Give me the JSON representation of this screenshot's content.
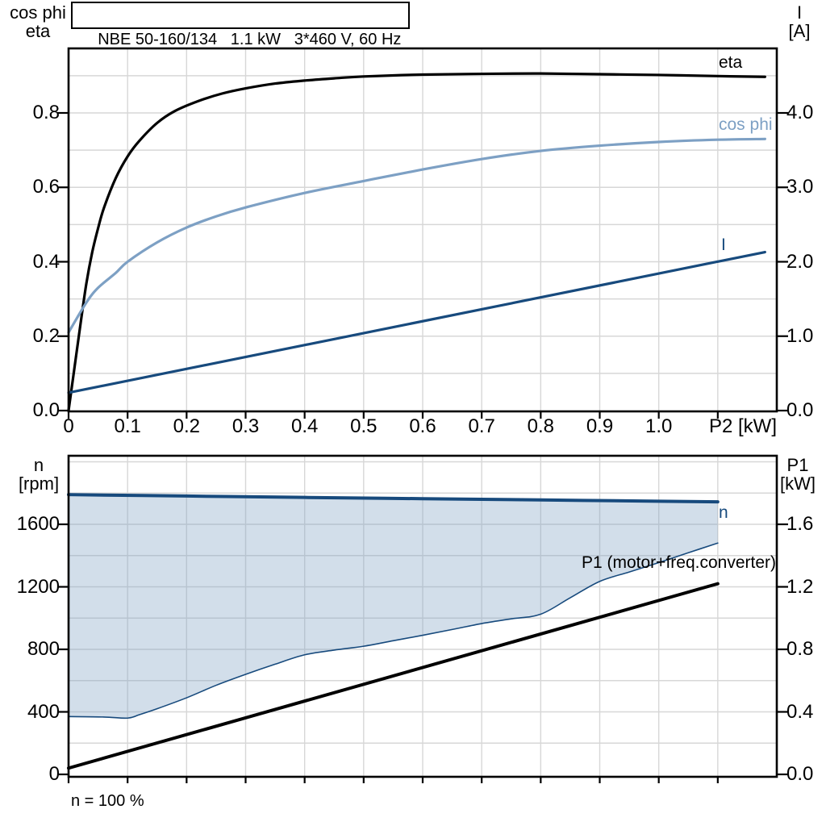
{
  "title_box": {
    "text": "NBE 50-160/134   1.1 kW   3*460 V, 60 Hz"
  },
  "caption": "n = 100 %",
  "colors": {
    "black": "#000000",
    "dark_blue": "#174a7d",
    "light_blue": "#7da0c4",
    "area_fill": "rgba(125,160,196,0.35)",
    "grid": "#d7d7d7",
    "frame": "#000000",
    "background": "#ffffff"
  },
  "chart_data": [
    {
      "id": "top",
      "type": "line",
      "x_axis": {
        "label": "P2 [kW]",
        "min": 0,
        "max": 1.2,
        "grid_step": 0.1,
        "tick_values": [
          0,
          0.1,
          0.2,
          0.3,
          0.4,
          0.5,
          0.6,
          0.7,
          0.8,
          0.9,
          1.0
        ],
        "tick_labels": [
          "0",
          "0.1",
          "0.2",
          "0.3",
          "0.4",
          "0.5",
          "0.6",
          "0.7",
          "0.8",
          "0.9",
          "1.0"
        ]
      },
      "y_left": {
        "header": [
          "cos phi",
          "eta"
        ],
        "min": 0,
        "max": 0.974,
        "grid_step": 0.1,
        "tick_values": [
          0,
          0.2,
          0.4,
          0.6,
          0.8
        ],
        "tick_labels": [
          "0.0",
          "0.2",
          "0.4",
          "0.6",
          "0.8"
        ]
      },
      "y_right": {
        "header": [
          "I",
          "[A]"
        ],
        "min": 0,
        "max": 4.87,
        "tick_values": [
          0,
          1,
          2,
          3,
          4
        ],
        "tick_labels": [
          "0.0",
          "1.0",
          "2.0",
          "3.0",
          "4.0"
        ]
      },
      "legend_position": "curve-end-labels",
      "grid": true,
      "series": [
        {
          "label": "eta",
          "axis": "left",
          "color": "#000000",
          "width": 3.2,
          "points": [
            [
              0,
              0
            ],
            [
              0.01,
              0.115
            ],
            [
              0.02,
              0.23
            ],
            [
              0.03,
              0.34
            ],
            [
              0.04,
              0.425
            ],
            [
              0.05,
              0.49
            ],
            [
              0.06,
              0.545
            ],
            [
              0.08,
              0.625
            ],
            [
              0.1,
              0.683
            ],
            [
              0.12,
              0.725
            ],
            [
              0.15,
              0.773
            ],
            [
              0.18,
              0.805
            ],
            [
              0.22,
              0.832
            ],
            [
              0.26,
              0.852
            ],
            [
              0.3,
              0.866
            ],
            [
              0.35,
              0.879
            ],
            [
              0.4,
              0.887
            ],
            [
              0.45,
              0.893
            ],
            [
              0.5,
              0.898
            ],
            [
              0.6,
              0.903
            ],
            [
              0.7,
              0.905
            ],
            [
              0.8,
              0.906
            ],
            [
              0.9,
              0.904
            ],
            [
              1.0,
              0.902
            ],
            [
              1.1,
              0.899
            ],
            [
              1.18,
              0.897
            ]
          ]
        },
        {
          "label": "cos phi",
          "axis": "left",
          "color": "#7da0c4",
          "width": 3.2,
          "points": [
            [
              0,
              0.21
            ],
            [
              0.03,
              0.29
            ],
            [
              0.05,
              0.33
            ],
            [
              0.08,
              0.37
            ],
            [
              0.1,
              0.4
            ],
            [
              0.15,
              0.452
            ],
            [
              0.2,
              0.492
            ],
            [
              0.25,
              0.522
            ],
            [
              0.3,
              0.546
            ],
            [
              0.4,
              0.585
            ],
            [
              0.5,
              0.617
            ],
            [
              0.6,
              0.648
            ],
            [
              0.7,
              0.676
            ],
            [
              0.8,
              0.698
            ],
            [
              0.9,
              0.712
            ],
            [
              1.0,
              0.722
            ],
            [
              1.1,
              0.728
            ],
            [
              1.18,
              0.73
            ]
          ]
        },
        {
          "label": "I",
          "axis": "right",
          "color": "#174a7d",
          "width": 3.2,
          "points": [
            [
              0,
              0.24
            ],
            [
              1.18,
              2.13
            ]
          ]
        }
      ]
    },
    {
      "id": "bottom",
      "type": "line",
      "x_axis": {
        "label": "",
        "min": 0,
        "max": 1.2,
        "grid_step": 0.1
      },
      "y_left": {
        "header": [
          "n",
          "[rpm]"
        ],
        "min": 0,
        "max": 2050,
        "grid_step": 200,
        "tick_values": [
          0,
          400,
          800,
          1200,
          1600
        ],
        "tick_labels": [
          "0",
          "400",
          "800",
          "1200",
          "1600"
        ]
      },
      "y_right": {
        "header": [
          "P1",
          "[kW]"
        ],
        "min": 0,
        "max": 2.05,
        "tick_values": [
          0,
          0.4,
          0.8,
          1.2,
          1.6
        ],
        "tick_labels": [
          "0.0",
          "0.4",
          "0.8",
          "1.2",
          "1.6"
        ]
      },
      "grid": true,
      "series": [
        {
          "label": "n",
          "axis": "left",
          "color": "#174a7d",
          "width": 4,
          "points": [
            [
              0,
              1790
            ],
            [
              0.2,
              1781
            ],
            [
              0.4,
              1772
            ],
            [
              0.6,
              1764
            ],
            [
              0.8,
              1756
            ],
            [
              1.0,
              1748
            ],
            [
              1.1,
              1744
            ]
          ]
        },
        {
          "label": "",
          "name": "min-speed-boundary",
          "axis": "left",
          "color": "#174a7d",
          "width": 1.6,
          "points": [
            [
              0,
              370
            ],
            [
              0.06,
              367
            ],
            [
              0.1,
              360
            ],
            [
              0.12,
              382
            ],
            [
              0.15,
              420
            ],
            [
              0.2,
              490
            ],
            [
              0.25,
              570
            ],
            [
              0.3,
              640
            ],
            [
              0.35,
              705
            ],
            [
              0.4,
              765
            ],
            [
              0.45,
              795
            ],
            [
              0.5,
              820
            ],
            [
              0.55,
              855
            ],
            [
              0.6,
              890
            ],
            [
              0.65,
              927
            ],
            [
              0.7,
              965
            ],
            [
              0.75,
              995
            ],
            [
              0.8,
              1025
            ],
            [
              0.85,
              1130
            ],
            [
              0.9,
              1235
            ],
            [
              0.95,
              1295
            ],
            [
              1.0,
              1355
            ],
            [
              1.05,
              1418
            ],
            [
              1.1,
              1480
            ]
          ]
        },
        {
          "label": "P1 (motor+freq.converter)",
          "axis": "right",
          "color": "#000000",
          "width": 4,
          "points": [
            [
              0,
              0.04
            ],
            [
              1.1,
              1.22
            ]
          ]
        }
      ],
      "area": {
        "upper": "n",
        "lower": "min-speed-boundary",
        "fill": "rgba(125,160,196,0.35)"
      }
    }
  ]
}
